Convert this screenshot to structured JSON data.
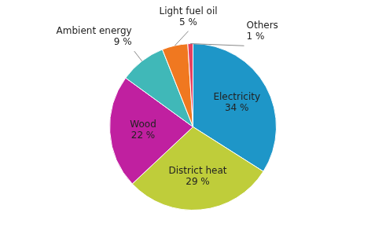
{
  "chart_data": {
    "type": "pie",
    "categories": [
      "Electricity",
      "District heat",
      "Wood",
      "Ambient energy",
      "Light fuel oil",
      "Others"
    ],
    "values": [
      34,
      29,
      22,
      9,
      5,
      1
    ],
    "value_labels": [
      "34 %",
      "29 %",
      "22 %",
      "9 %",
      "5 %",
      "1 %"
    ],
    "colors": [
      "#1E96C8",
      "#BFCD3A",
      "#C020A0",
      "#40B8B8",
      "#F07820",
      "#E84060"
    ],
    "data_labels": true
  }
}
